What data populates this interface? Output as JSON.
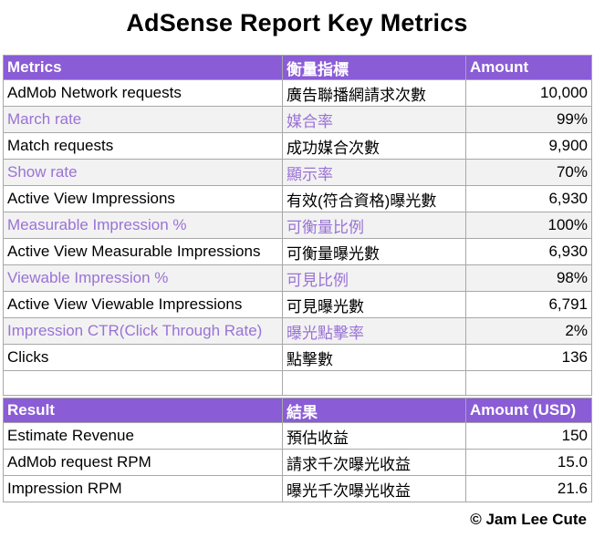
{
  "title": "AdSense Report Key Metrics",
  "metrics": {
    "headers": [
      "Metrics",
      "衡量指標",
      "Amount"
    ],
    "rows": [
      {
        "en": "AdMob Network requests",
        "zh": "廣告聯播網請求次數",
        "amount": "10,000"
      },
      {
        "en": "March rate",
        "zh": "媒合率",
        "amount": "99%"
      },
      {
        "en": "Match requests",
        "zh": "成功媒合次數",
        "amount": "9,900"
      },
      {
        "en": "Show rate",
        "zh": "顯示率",
        "amount": "70%"
      },
      {
        "en": "Active View Impressions",
        "zh": "有效(符合資格)曝光數",
        "amount": "6,930"
      },
      {
        "en": "Measurable Impression %",
        "zh": "可衡量比例",
        "amount": "100%"
      },
      {
        "en": "Active View Measurable Impressions",
        "zh": "可衡量曝光數",
        "amount": "6,930"
      },
      {
        "en": "Viewable Impression %",
        "zh": "可見比例",
        "amount": "98%"
      },
      {
        "en": "Active View Viewable Impressions",
        "zh": "可見曝光數",
        "amount": "6,791"
      },
      {
        "en": "Impression CTR(Click Through Rate)",
        "zh": "曝光點擊率",
        "amount": "2%"
      },
      {
        "en": "Clicks",
        "zh": "點擊數",
        "amount": "136"
      }
    ]
  },
  "result": {
    "headers": [
      "Result",
      "結果",
      "Amount (USD)"
    ],
    "rows": [
      {
        "en": "Estimate Revenue",
        "zh": "預估收益",
        "amount": "150"
      },
      {
        "en": "AdMob request RPM",
        "zh": "請求千次曝光收益",
        "amount": "15.0"
      },
      {
        "en": "Impression RPM",
        "zh": "曝光千次曝光收益",
        "amount": "21.6"
      }
    ]
  },
  "copyright": "© Jam Lee Cute",
  "colors": {
    "header_bg": "#8a5cd6",
    "alt_text": "#9a72d6",
    "alt_bg": "#f2f2f2"
  }
}
